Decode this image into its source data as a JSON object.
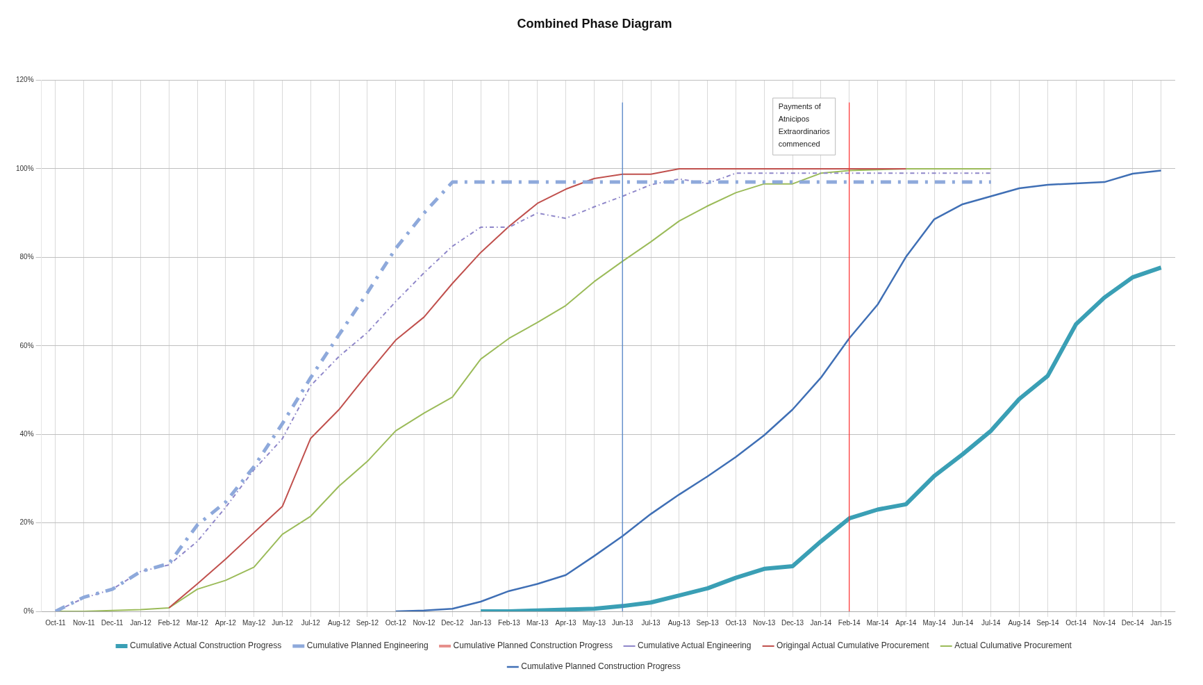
{
  "chart_data": {
    "type": "line",
    "title": "Combined Phase Diagram",
    "categories": [
      "Oct-11",
      "Nov-11",
      "Dec-11",
      "Jan-12",
      "Feb-12",
      "Mar-12",
      "Apr-12",
      "May-12",
      "Jun-12",
      "Jul-12",
      "Aug-12",
      "Sep-12",
      "Oct-12",
      "Nov-12",
      "Dec-12",
      "Jan-13",
      "Feb-13",
      "Mar-13",
      "Apr-13",
      "May-13",
      "Jun-13",
      "Jul-13",
      "Aug-13",
      "Sep-13",
      "Oct-13",
      "Nov-13",
      "Dec-13",
      "Jan-14",
      "Feb-14",
      "Mar-14",
      "Apr-14",
      "May-14",
      "Jun-14",
      "Jul-14",
      "Aug-14",
      "Sep-14",
      "Oct-14",
      "Nov-14",
      "Dec-14",
      "Jan-15"
    ],
    "ylim": [
      0,
      120
    ],
    "yticks": [
      {
        "value": 0,
        "label": "0%"
      },
      {
        "value": 20,
        "label": "20%"
      },
      {
        "value": 40,
        "label": "40%"
      },
      {
        "value": 60,
        "label": "60%"
      },
      {
        "value": 80,
        "label": "80%"
      },
      {
        "value": 100,
        "label": "100%"
      },
      {
        "value": 120,
        "label": "120%"
      }
    ],
    "grid": true,
    "legend": "bottom",
    "marker": "none",
    "series": [
      {
        "name": "Cumulative Actual Construction Progress",
        "color": "#3a9fb5",
        "values": [
          null,
          null,
          null,
          null,
          null,
          null,
          null,
          null,
          null,
          null,
          null,
          null,
          null,
          null,
          null,
          0,
          0,
          0.2,
          0.4,
          0.6,
          1.2,
          2,
          3.6,
          5.2,
          7.6,
          9.6,
          10.2,
          15.8,
          21,
          23,
          24.2,
          30.6,
          35.5,
          40.8,
          48,
          53.2,
          64.9,
          70.9,
          75.5,
          77.7
        ]
      },
      {
        "name": "Cumulative Planned Engineering",
        "color": "#8ea9db",
        "line_style": "dashed",
        "values": [
          0,
          3.2,
          5,
          9,
          10.8,
          19.5,
          24.7,
          32.7,
          42.4,
          52.8,
          62.5,
          72,
          82,
          90,
          97,
          97,
          97,
          97,
          97,
          97,
          97,
          97,
          97,
          97,
          97,
          97,
          97,
          97,
          97,
          97,
          97,
          97,
          97,
          97,
          null,
          null,
          null,
          null,
          null,
          null
        ]
      },
      {
        "name": "Cumulative Planned Construction Progress",
        "color": "#e6908c",
        "values": [
          null,
          null,
          null,
          null,
          null,
          null,
          null,
          null,
          null,
          null,
          null,
          null,
          null,
          null,
          null,
          null,
          null,
          null,
          null,
          null,
          null,
          null,
          null,
          null,
          null,
          null,
          null,
          null,
          null,
          null,
          null,
          null,
          null,
          null,
          null,
          null,
          null,
          null,
          null,
          null
        ]
      },
      {
        "name": "Cumulative Actual Engineering",
        "color": "#8e86c9",
        "line_style": "dashed",
        "values": [
          0,
          3,
          5,
          9,
          10.5,
          15.8,
          23.5,
          32,
          39,
          51,
          57.6,
          63,
          70,
          76.5,
          82.5,
          86.8,
          86.8,
          90,
          88.8,
          91.4,
          93.8,
          96.4,
          97.7,
          96.7,
          99,
          99,
          99,
          99,
          99,
          99,
          99,
          99,
          99,
          99,
          null,
          null,
          null,
          null,
          null,
          null
        ]
      },
      {
        "name": "Origingal Actual Cumulative Procurement",
        "color": "#c0504d",
        "values": [
          null,
          null,
          null,
          null,
          0.8,
          6.2,
          11.8,
          17.8,
          23.7,
          39.1,
          45.6,
          53.6,
          61.3,
          66.5,
          74.1,
          81.1,
          87,
          92.2,
          95.4,
          97.8,
          98.8,
          98.8,
          100,
          100,
          100,
          100,
          100,
          100,
          100,
          100,
          100,
          null,
          null,
          null,
          null,
          null,
          null,
          null,
          null,
          null
        ]
      },
      {
        "name": "Actual Culumative Procurement",
        "color": "#9bbb59",
        "values": [
          0,
          0,
          0.2,
          0.4,
          0.8,
          5,
          7,
          10,
          17.4,
          21.5,
          28.3,
          33.9,
          40.8,
          44.8,
          48.4,
          57,
          61.7,
          65.3,
          69.1,
          74.5,
          79.1,
          83.5,
          88.2,
          91.6,
          94.6,
          96.6,
          96.6,
          99,
          99.6,
          99.8,
          100,
          100,
          100,
          100,
          null,
          null,
          null,
          null,
          null,
          null
        ]
      },
      {
        "name": "Cumulative Planned Construction Progress",
        "color": "#3f6fb5",
        "values": [
          null,
          null,
          null,
          null,
          null,
          null,
          null,
          null,
          null,
          null,
          null,
          null,
          0,
          0.2,
          0.6,
          2.2,
          4.6,
          6.2,
          8.2,
          12.5,
          17,
          22,
          26.4,
          30.5,
          34.9,
          39.8,
          45.6,
          52.8,
          61.7,
          69.3,
          80.1,
          88.6,
          92,
          93.8,
          95.6,
          96.4,
          96.7,
          97,
          98.9,
          99.6
        ]
      }
    ],
    "ref_lines": [
      {
        "axis": "x",
        "value": "Jun-13",
        "color": "#4a7fc8"
      },
      {
        "axis": "x",
        "value": "Feb-14",
        "color": "#ff3030"
      }
    ],
    "annotations": [
      "Payments of Atnicipos Extraordinarios commenced"
    ]
  }
}
